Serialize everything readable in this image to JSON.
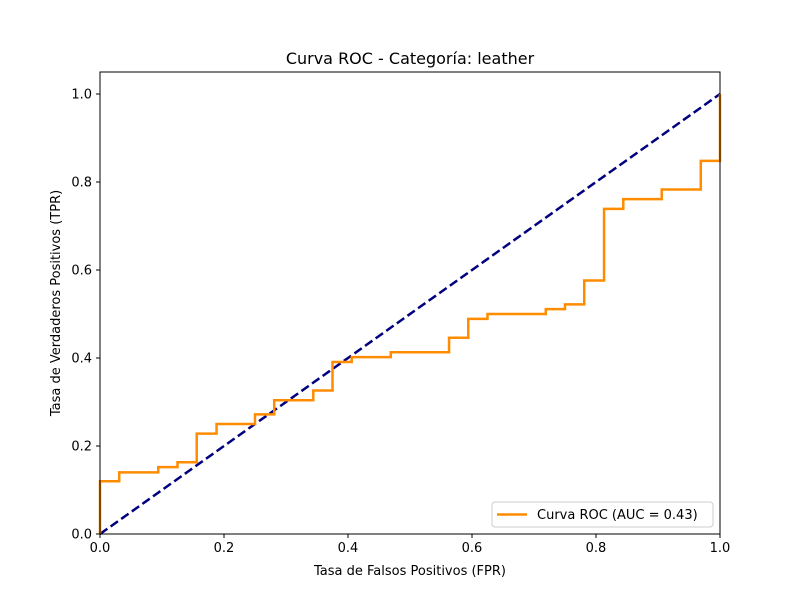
{
  "chart_data": {
    "type": "line",
    "title": "Curva ROC - Categoría: leather",
    "xlabel": "Tasa de Falsos Positivos (FPR)",
    "ylabel": "Tasa de Verdaderos Positivos (TPR)",
    "xlim": [
      0.0,
      1.0
    ],
    "ylim": [
      0.0,
      1.05
    ],
    "xticks": [
      "0.0",
      "0.2",
      "0.4",
      "0.6",
      "0.8",
      "1.0"
    ],
    "yticks": [
      "0.0",
      "0.2",
      "0.4",
      "0.6",
      "0.8",
      "1.0"
    ],
    "grid": false,
    "legend_position": "lower-right",
    "series": [
      {
        "name": "Curva ROC (AUC = 0.43)",
        "color": "#ff8c00",
        "style": "solid",
        "x": [
          0.0,
          0.0,
          0.031,
          0.031,
          0.094,
          0.094,
          0.125,
          0.125,
          0.156,
          0.156,
          0.188,
          0.188,
          0.25,
          0.25,
          0.281,
          0.281,
          0.344,
          0.344,
          0.375,
          0.375,
          0.406,
          0.406,
          0.469,
          0.469,
          0.563,
          0.563,
          0.594,
          0.594,
          0.625,
          0.625,
          0.719,
          0.719,
          0.75,
          0.75,
          0.781,
          0.781,
          0.813,
          0.813,
          0.844,
          0.844,
          0.906,
          0.906,
          0.969,
          0.969,
          1.0,
          1.0
        ],
        "y": [
          0.0,
          0.12,
          0.12,
          0.14,
          0.14,
          0.152,
          0.152,
          0.163,
          0.163,
          0.228,
          0.228,
          0.25,
          0.25,
          0.272,
          0.272,
          0.304,
          0.304,
          0.326,
          0.326,
          0.391,
          0.391,
          0.402,
          0.402,
          0.413,
          0.413,
          0.446,
          0.446,
          0.489,
          0.489,
          0.5,
          0.5,
          0.511,
          0.511,
          0.522,
          0.522,
          0.576,
          0.576,
          0.739,
          0.739,
          0.761,
          0.761,
          0.783,
          0.783,
          0.848,
          0.848,
          1.0
        ]
      },
      {
        "name": "",
        "color": "#000080",
        "style": "dashed",
        "x": [
          0.0,
          1.0
        ],
        "y": [
          0.0,
          1.0
        ]
      }
    ]
  }
}
